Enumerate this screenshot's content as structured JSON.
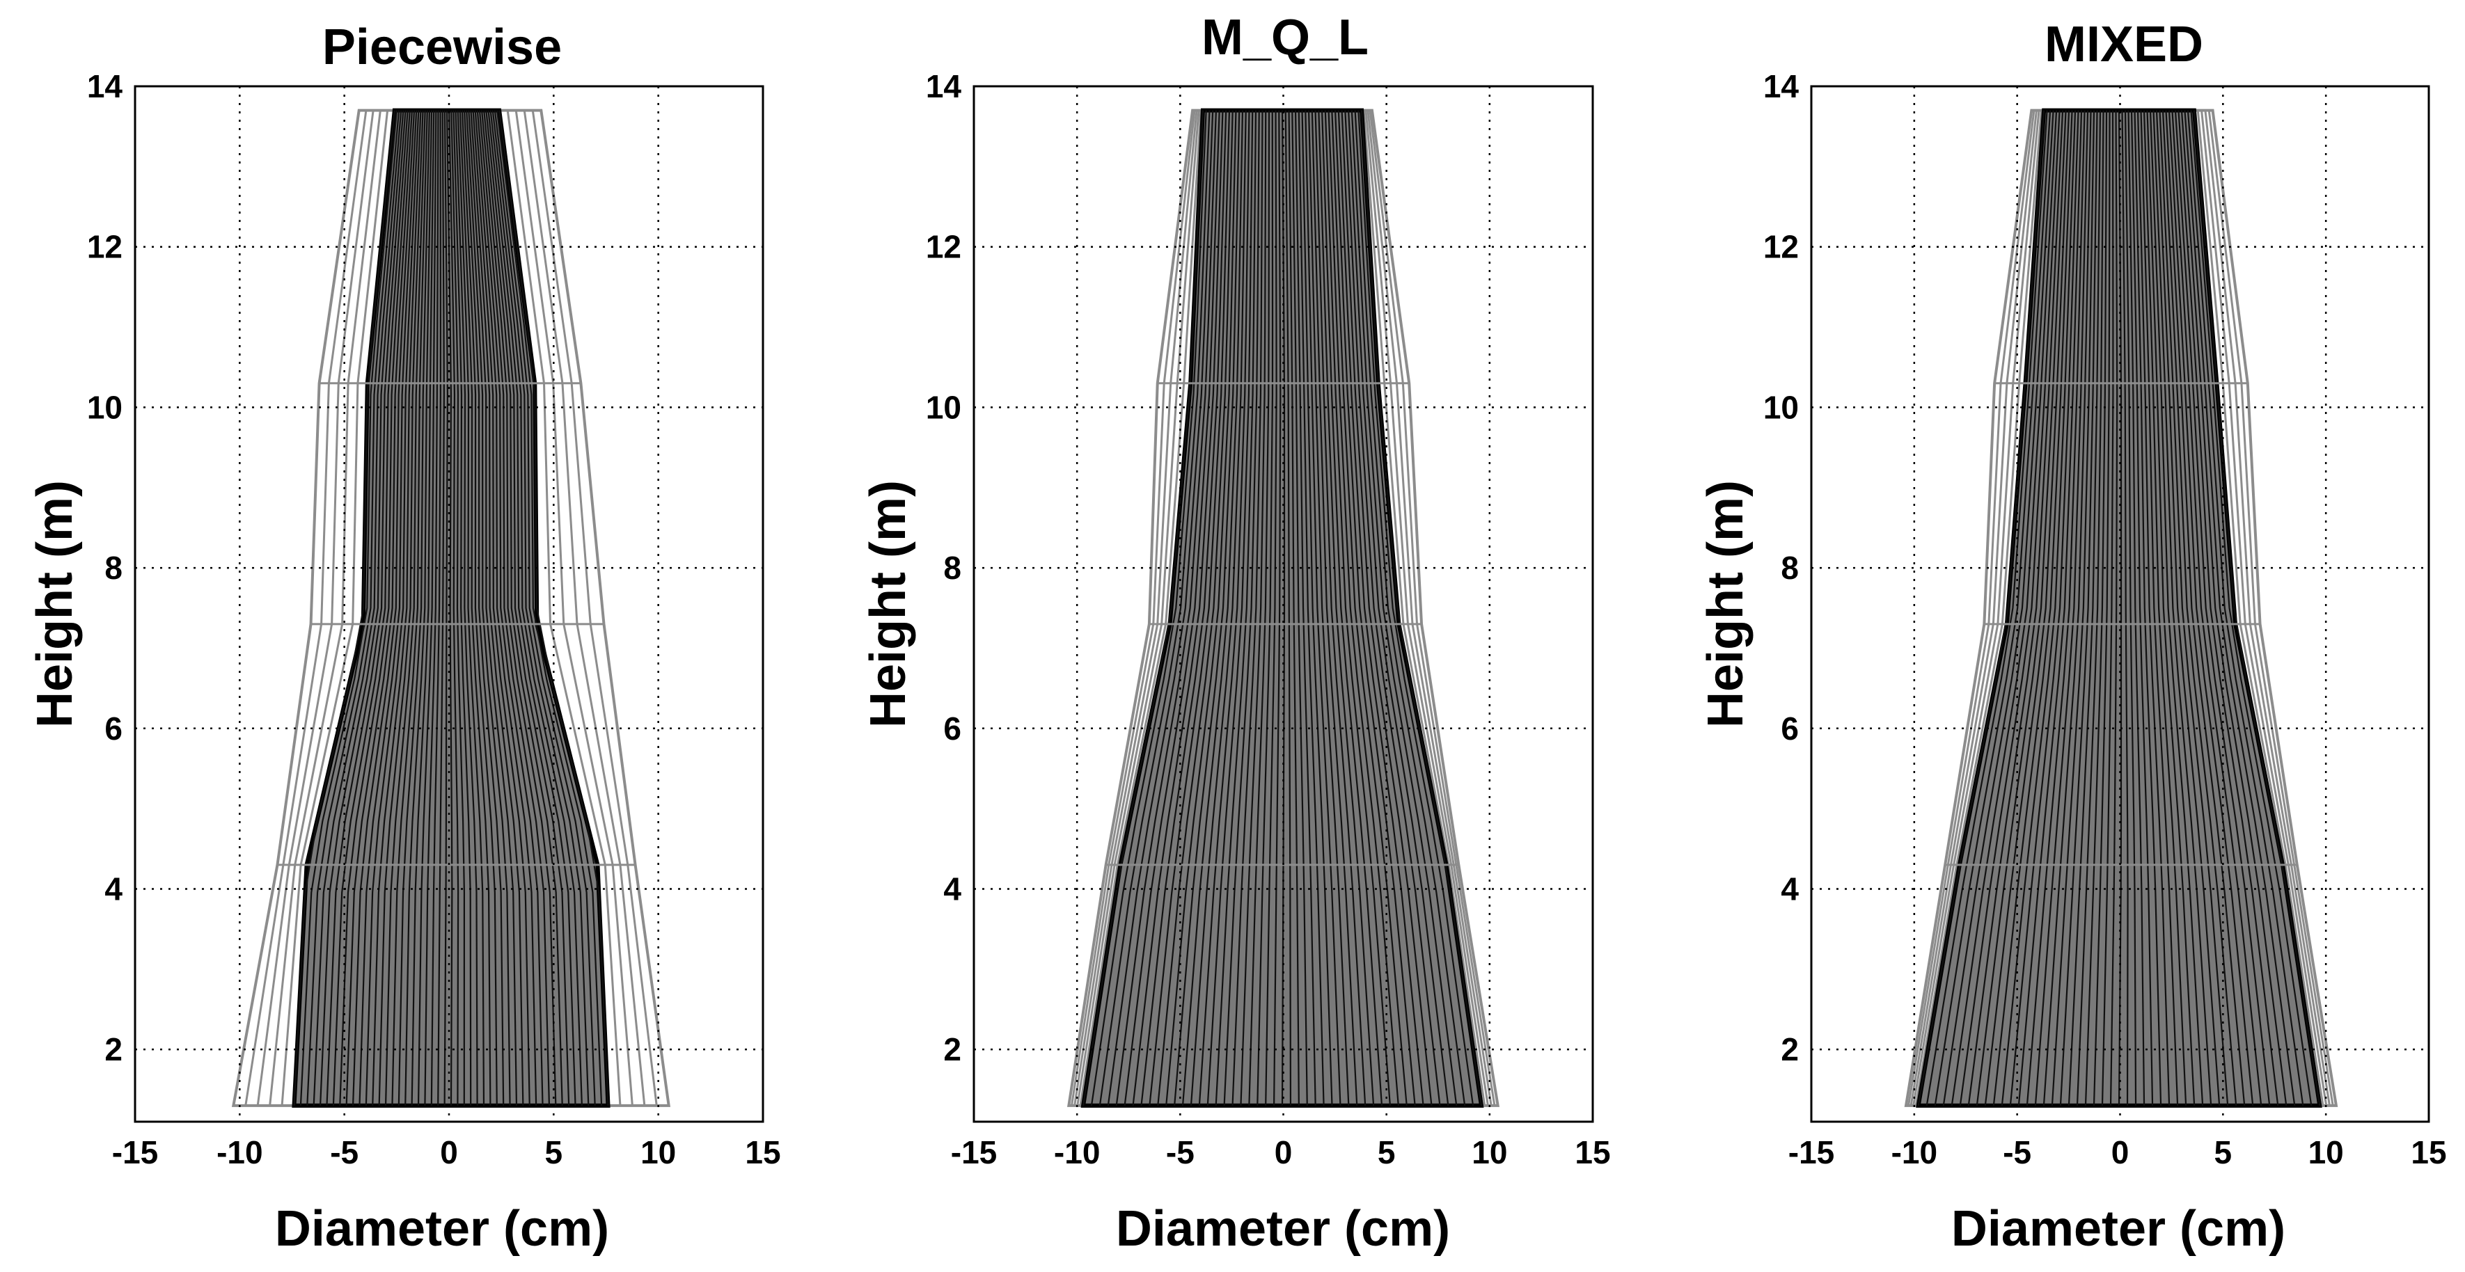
{
  "figure": {
    "shared": {
      "xlabel": "Diameter (cm)",
      "ylabel": "Height (m)",
      "xlim": [
        -15,
        15
      ],
      "ylim": [
        1.1,
        14
      ],
      "xticks": [
        -15,
        -10,
        -5,
        0,
        5,
        10,
        15
      ],
      "yticks": [
        2,
        4,
        6,
        8,
        10,
        12,
        14
      ],
      "grid": true,
      "colors": {
        "outer": "#8c8c8c",
        "inner": "#000000",
        "fill": "#7a7a7a",
        "frame": "#000000"
      }
    }
  },
  "chart_data": [
    {
      "type": "area",
      "title": "Piecewise",
      "heights": [
        1.3,
        4.3,
        7.3,
        10.3,
        13.7
      ],
      "outer_left": [
        -10.3,
        -8.2,
        -6.6,
        -6.2,
        -4.3
      ],
      "outer_right": [
        10.5,
        8.9,
        7.4,
        6.3,
        4.4
      ],
      "inner_left": [
        -7.4,
        -6.8,
        -4.1,
        -3.9,
        -2.6
      ],
      "inner_right": [
        7.6,
        7.1,
        4.2,
        4.1,
        2.4
      ]
    },
    {
      "type": "area",
      "title": "M_Q_L",
      "heights": [
        1.3,
        4.3,
        7.3,
        10.3,
        13.7
      ],
      "outer_left": [
        -10.4,
        -8.6,
        -6.5,
        -6.1,
        -4.4
      ],
      "outer_right": [
        10.4,
        8.5,
        6.7,
        6.1,
        4.3
      ],
      "inner_left": [
        -9.7,
        -7.9,
        -5.5,
        -4.5,
        -3.9
      ],
      "inner_right": [
        9.6,
        7.9,
        5.6,
        4.6,
        3.8
      ]
    },
    {
      "type": "area",
      "title": "MIXED",
      "heights": [
        1.3,
        4.3,
        7.3,
        10.3,
        13.7
      ],
      "outer_left": [
        -10.4,
        -8.5,
        -6.6,
        -6.1,
        -4.3
      ],
      "outer_right": [
        10.5,
        8.6,
        6.8,
        6.2,
        4.5
      ],
      "inner_left": [
        -9.8,
        -7.8,
        -5.5,
        -4.6,
        -3.7
      ],
      "inner_right": [
        9.7,
        7.9,
        5.6,
        4.7,
        3.6
      ]
    }
  ]
}
